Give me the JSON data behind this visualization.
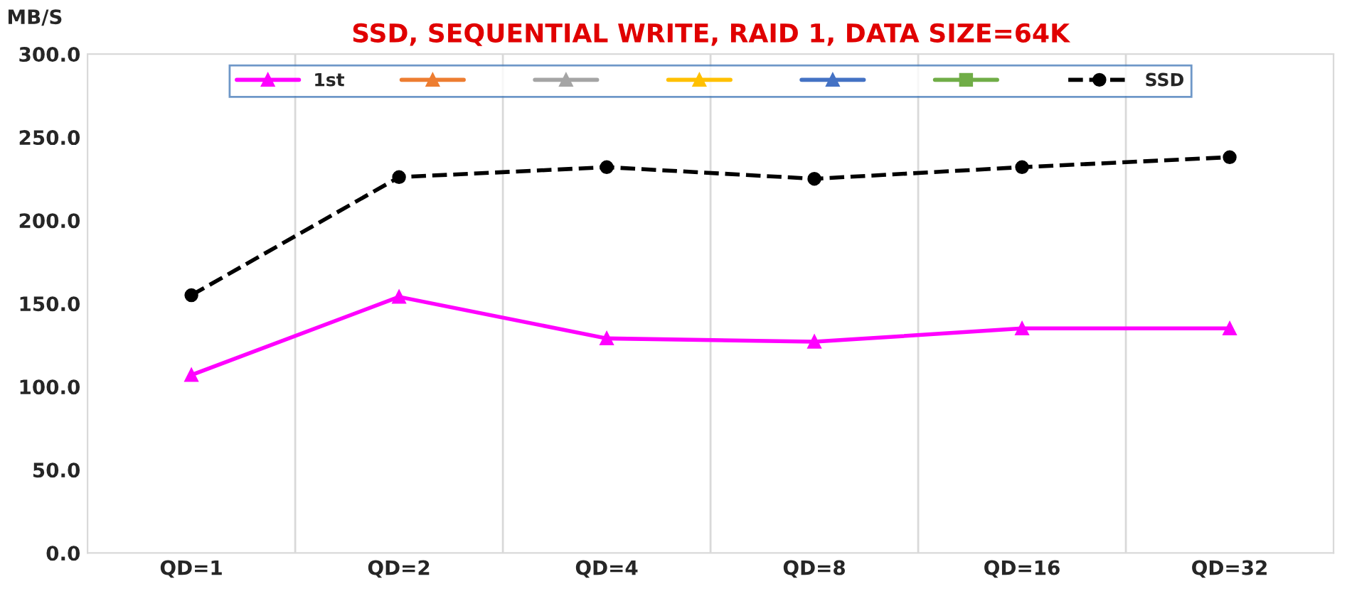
{
  "chart_data": {
    "type": "line",
    "title": "SSD, SEQUENTIAL WRITE, RAID 1, DATA SIZE=64K",
    "ylabel": "MB/S",
    "categories": [
      "QD=1",
      "QD=2",
      "QD=4",
      "QD=8",
      "QD=16",
      "QD=32"
    ],
    "series": [
      {
        "name": "1st",
        "color": "#ff00ff",
        "marker": "triangle",
        "line_style": "solid",
        "values": [
          107,
          154,
          129,
          127,
          135,
          135
        ]
      },
      {
        "color": "#ed7d31",
        "marker": "triangle",
        "line_style": "solid",
        "values": [
          null,
          null,
          null,
          null,
          null,
          null
        ]
      },
      {
        "color": "#a5a5a5",
        "marker": "triangle",
        "line_style": "solid",
        "values": [
          null,
          null,
          null,
          null,
          null,
          null
        ]
      },
      {
        "color": "#ffc000",
        "marker": "triangle",
        "line_style": "solid",
        "values": [
          null,
          null,
          null,
          null,
          null,
          null
        ]
      },
      {
        "color": "#4472c4",
        "marker": "triangle",
        "line_style": "solid",
        "values": [
          null,
          null,
          null,
          null,
          null,
          null
        ]
      },
      {
        "color": "#70ad47",
        "marker": "square",
        "line_style": "solid",
        "values": [
          null,
          null,
          null,
          null,
          null,
          null
        ]
      },
      {
        "name": "SSD",
        "color": "#000000",
        "marker": "circle",
        "line_style": "dashed",
        "values": [
          155,
          226,
          232,
          225,
          232,
          238
        ]
      }
    ],
    "ylim": [
      0,
      300
    ],
    "yticks": [
      {
        "value": 0,
        "label": "0.0"
      },
      {
        "value": 50,
        "label": "50.0"
      },
      {
        "value": 100,
        "label": "100.0"
      },
      {
        "value": 150,
        "label": "150.0"
      },
      {
        "value": 200,
        "label": "200.0"
      },
      {
        "value": 250,
        "label": "250.0"
      },
      {
        "value": 300,
        "label": "300.0"
      }
    ],
    "grid": "x",
    "legend": "top"
  }
}
